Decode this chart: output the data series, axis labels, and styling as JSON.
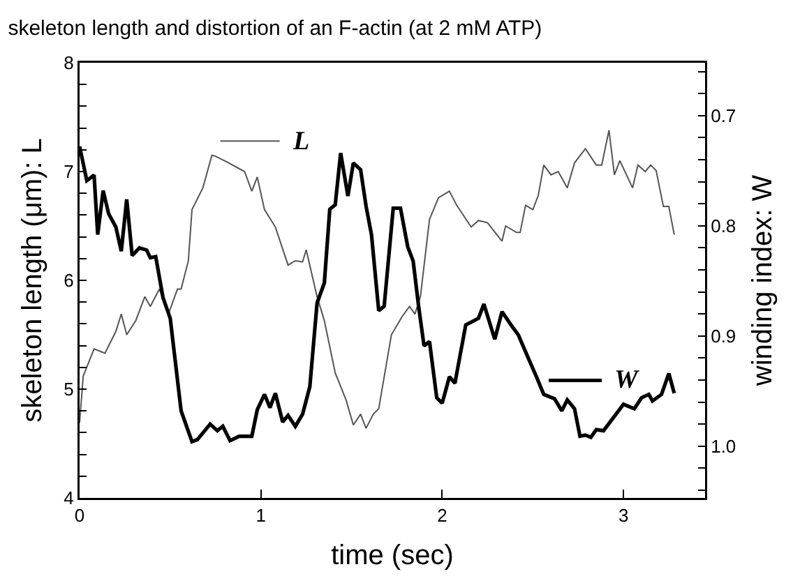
{
  "chart_data": {
    "type": "line",
    "title": "skeleton length and distortion of an F-actin (at 2 mM ATP)",
    "xlabel": "time (sec)",
    "ylabel": "skeleton length (μm): L",
    "y2label": "winding index: W",
    "xlim": [
      0,
      3.45
    ],
    "xticks": [
      0,
      1,
      2,
      3
    ],
    "ylim": [
      4,
      8
    ],
    "yticks": [
      4,
      {
        "value": 4.2,
        "label": null
      },
      {
        "value": 4.4,
        "label": null
      },
      {
        "value": 4.6,
        "label": null
      },
      {
        "value": 4.8,
        "label": null
      },
      5,
      {
        "value": 5.2,
        "label": null
      },
      {
        "value": 5.4,
        "label": null
      },
      {
        "value": 5.6,
        "label": null
      },
      {
        "value": 5.8,
        "label": null
      },
      6,
      {
        "value": 6.2,
        "label": null
      },
      {
        "value": 6.4,
        "label": null
      },
      {
        "value": 6.6,
        "label": null
      },
      {
        "value": 6.8,
        "label": null
      },
      7,
      {
        "value": 7.2,
        "label": null
      },
      {
        "value": 7.4,
        "label": null
      },
      {
        "value": 7.6,
        "label": null
      },
      {
        "value": 7.8,
        "label": null
      },
      8
    ],
    "y2lim": [
      1.047,
      0.652
    ],
    "y2ticks": [
      {
        "value": 0.66,
        "label": null
      },
      {
        "value": 0.68,
        "label": null
      },
      0.7,
      {
        "value": 0.72,
        "label": null
      },
      {
        "value": 0.74,
        "label": null
      },
      {
        "value": 0.76,
        "label": null
      },
      {
        "value": 0.78,
        "label": null
      },
      0.8,
      {
        "value": 0.82,
        "label": null
      },
      {
        "value": 0.84,
        "label": null
      },
      {
        "value": 0.86,
        "label": null
      },
      {
        "value": 0.88,
        "label": null
      },
      0.9,
      {
        "value": 0.92,
        "label": null
      },
      {
        "value": 0.94,
        "label": null
      },
      {
        "value": 0.96,
        "label": null
      },
      {
        "value": 0.98,
        "label": null
      },
      {
        "value": 1.0,
        "label": "1.0"
      },
      {
        "value": 1.02,
        "label": null
      },
      {
        "value": 1.04,
        "label": null
      }
    ],
    "grid": false,
    "legend": "top",
    "marker": "none",
    "line_style": "solid",
    "series": [
      {
        "name": "L",
        "color": "#555555",
        "x": [
          0,
          0.02,
          0.08,
          0.14,
          0.2,
          0.23,
          0.26,
          0.31,
          0.36,
          0.39,
          0.44,
          0.49,
          0.54,
          0.56,
          0.6,
          0.62,
          0.68,
          0.73,
          0.75,
          0.81,
          0.91,
          0.95,
          0.98,
          1.02,
          1.08,
          1.15,
          1.19,
          1.23,
          1.25,
          1.31,
          1.35,
          1.41,
          1.47,
          1.51,
          1.55,
          1.58,
          1.62,
          1.65,
          1.72,
          1.78,
          1.82,
          1.85,
          1.88,
          1.93,
          1.98,
          2.04,
          2.08,
          2.16,
          2.2,
          2.25,
          2.33,
          2.35,
          2.41,
          2.43,
          2.46,
          2.5,
          2.53,
          2.56,
          2.6,
          2.64,
          2.69,
          2.73,
          2.79,
          2.85,
          2.88,
          2.92,
          2.95,
          2.98,
          3.05,
          3.08,
          3.12,
          3.15,
          3.18,
          3.22,
          3.25,
          3.28
        ],
        "values": [
          4.69,
          5.12,
          5.37,
          5.33,
          5.53,
          5.69,
          5.5,
          5.63,
          5.85,
          5.76,
          5.92,
          5.69,
          5.92,
          5.92,
          6.18,
          6.65,
          6.85,
          7.15,
          7.14,
          7.09,
          7.0,
          6.82,
          6.95,
          6.65,
          6.49,
          6.14,
          6.18,
          6.17,
          6.28,
          5.85,
          5.63,
          5.15,
          4.9,
          4.67,
          4.77,
          4.64,
          4.77,
          4.82,
          5.5,
          5.67,
          5.76,
          5.69,
          5.85,
          6.56,
          6.76,
          6.82,
          6.69,
          6.49,
          6.55,
          6.53,
          6.36,
          6.5,
          6.44,
          6.44,
          6.69,
          6.65,
          6.78,
          7.06,
          6.97,
          7.0,
          6.85,
          7.08,
          7.21,
          7.06,
          7.06,
          7.38,
          6.97,
          7.1,
          6.85,
          7.06,
          7.0,
          7.06,
          7.01,
          6.68,
          6.68,
          6.42
        ]
      },
      {
        "name": "W",
        "color": "#000000",
        "axis": "y2",
        "x": [
          0,
          0.04,
          0.08,
          0.1,
          0.13,
          0.16,
          0.2,
          0.23,
          0.26,
          0.29,
          0.33,
          0.37,
          0.39,
          0.42,
          0.46,
          0.5,
          0.56,
          0.62,
          0.65,
          0.72,
          0.76,
          0.79,
          0.83,
          0.88,
          0.95,
          0.98,
          1.02,
          1.05,
          1.08,
          1.12,
          1.15,
          1.19,
          1.23,
          1.27,
          1.31,
          1.35,
          1.38,
          1.41,
          1.44,
          1.48,
          1.51,
          1.55,
          1.58,
          1.61,
          1.65,
          1.68,
          1.73,
          1.77,
          1.81,
          1.84,
          1.87,
          1.9,
          1.93,
          1.97,
          2.0,
          2.04,
          2.07,
          2.13,
          2.2,
          2.23,
          2.29,
          2.33,
          2.38,
          2.42,
          2.48,
          2.52,
          2.56,
          2.62,
          2.66,
          2.69,
          2.73,
          2.76,
          2.79,
          2.82,
          2.85,
          2.89,
          3.0,
          3.06,
          3.1,
          3.14,
          3.16,
          3.21,
          3.25,
          3.28
        ],
        "values": [
          0.728,
          0.759,
          0.754,
          0.808,
          0.768,
          0.789,
          0.801,
          0.823,
          0.776,
          0.827,
          0.82,
          0.822,
          0.829,
          0.828,
          0.865,
          0.884,
          0.968,
          0.996,
          0.994,
          0.98,
          0.986,
          0.982,
          0.995,
          0.991,
          0.991,
          0.967,
          0.953,
          0.965,
          0.952,
          0.978,
          0.972,
          0.982,
          0.971,
          0.946,
          0.87,
          0.852,
          0.785,
          0.781,
          0.734,
          0.773,
          0.743,
          0.749,
          0.782,
          0.808,
          0.877,
          0.873,
          0.784,
          0.784,
          0.819,
          0.832,
          0.873,
          0.909,
          0.905,
          0.956,
          0.961,
          0.937,
          0.943,
          0.89,
          0.884,
          0.871,
          0.903,
          0.878,
          0.89,
          0.899,
          0.922,
          0.937,
          0.953,
          0.957,
          0.968,
          0.958,
          0.966,
          0.991,
          0.99,
          0.992,
          0.985,
          0.986,
          0.962,
          0.966,
          0.956,
          0.953,
          0.959,
          0.953,
          0.934,
          0.952
        ]
      }
    ]
  }
}
